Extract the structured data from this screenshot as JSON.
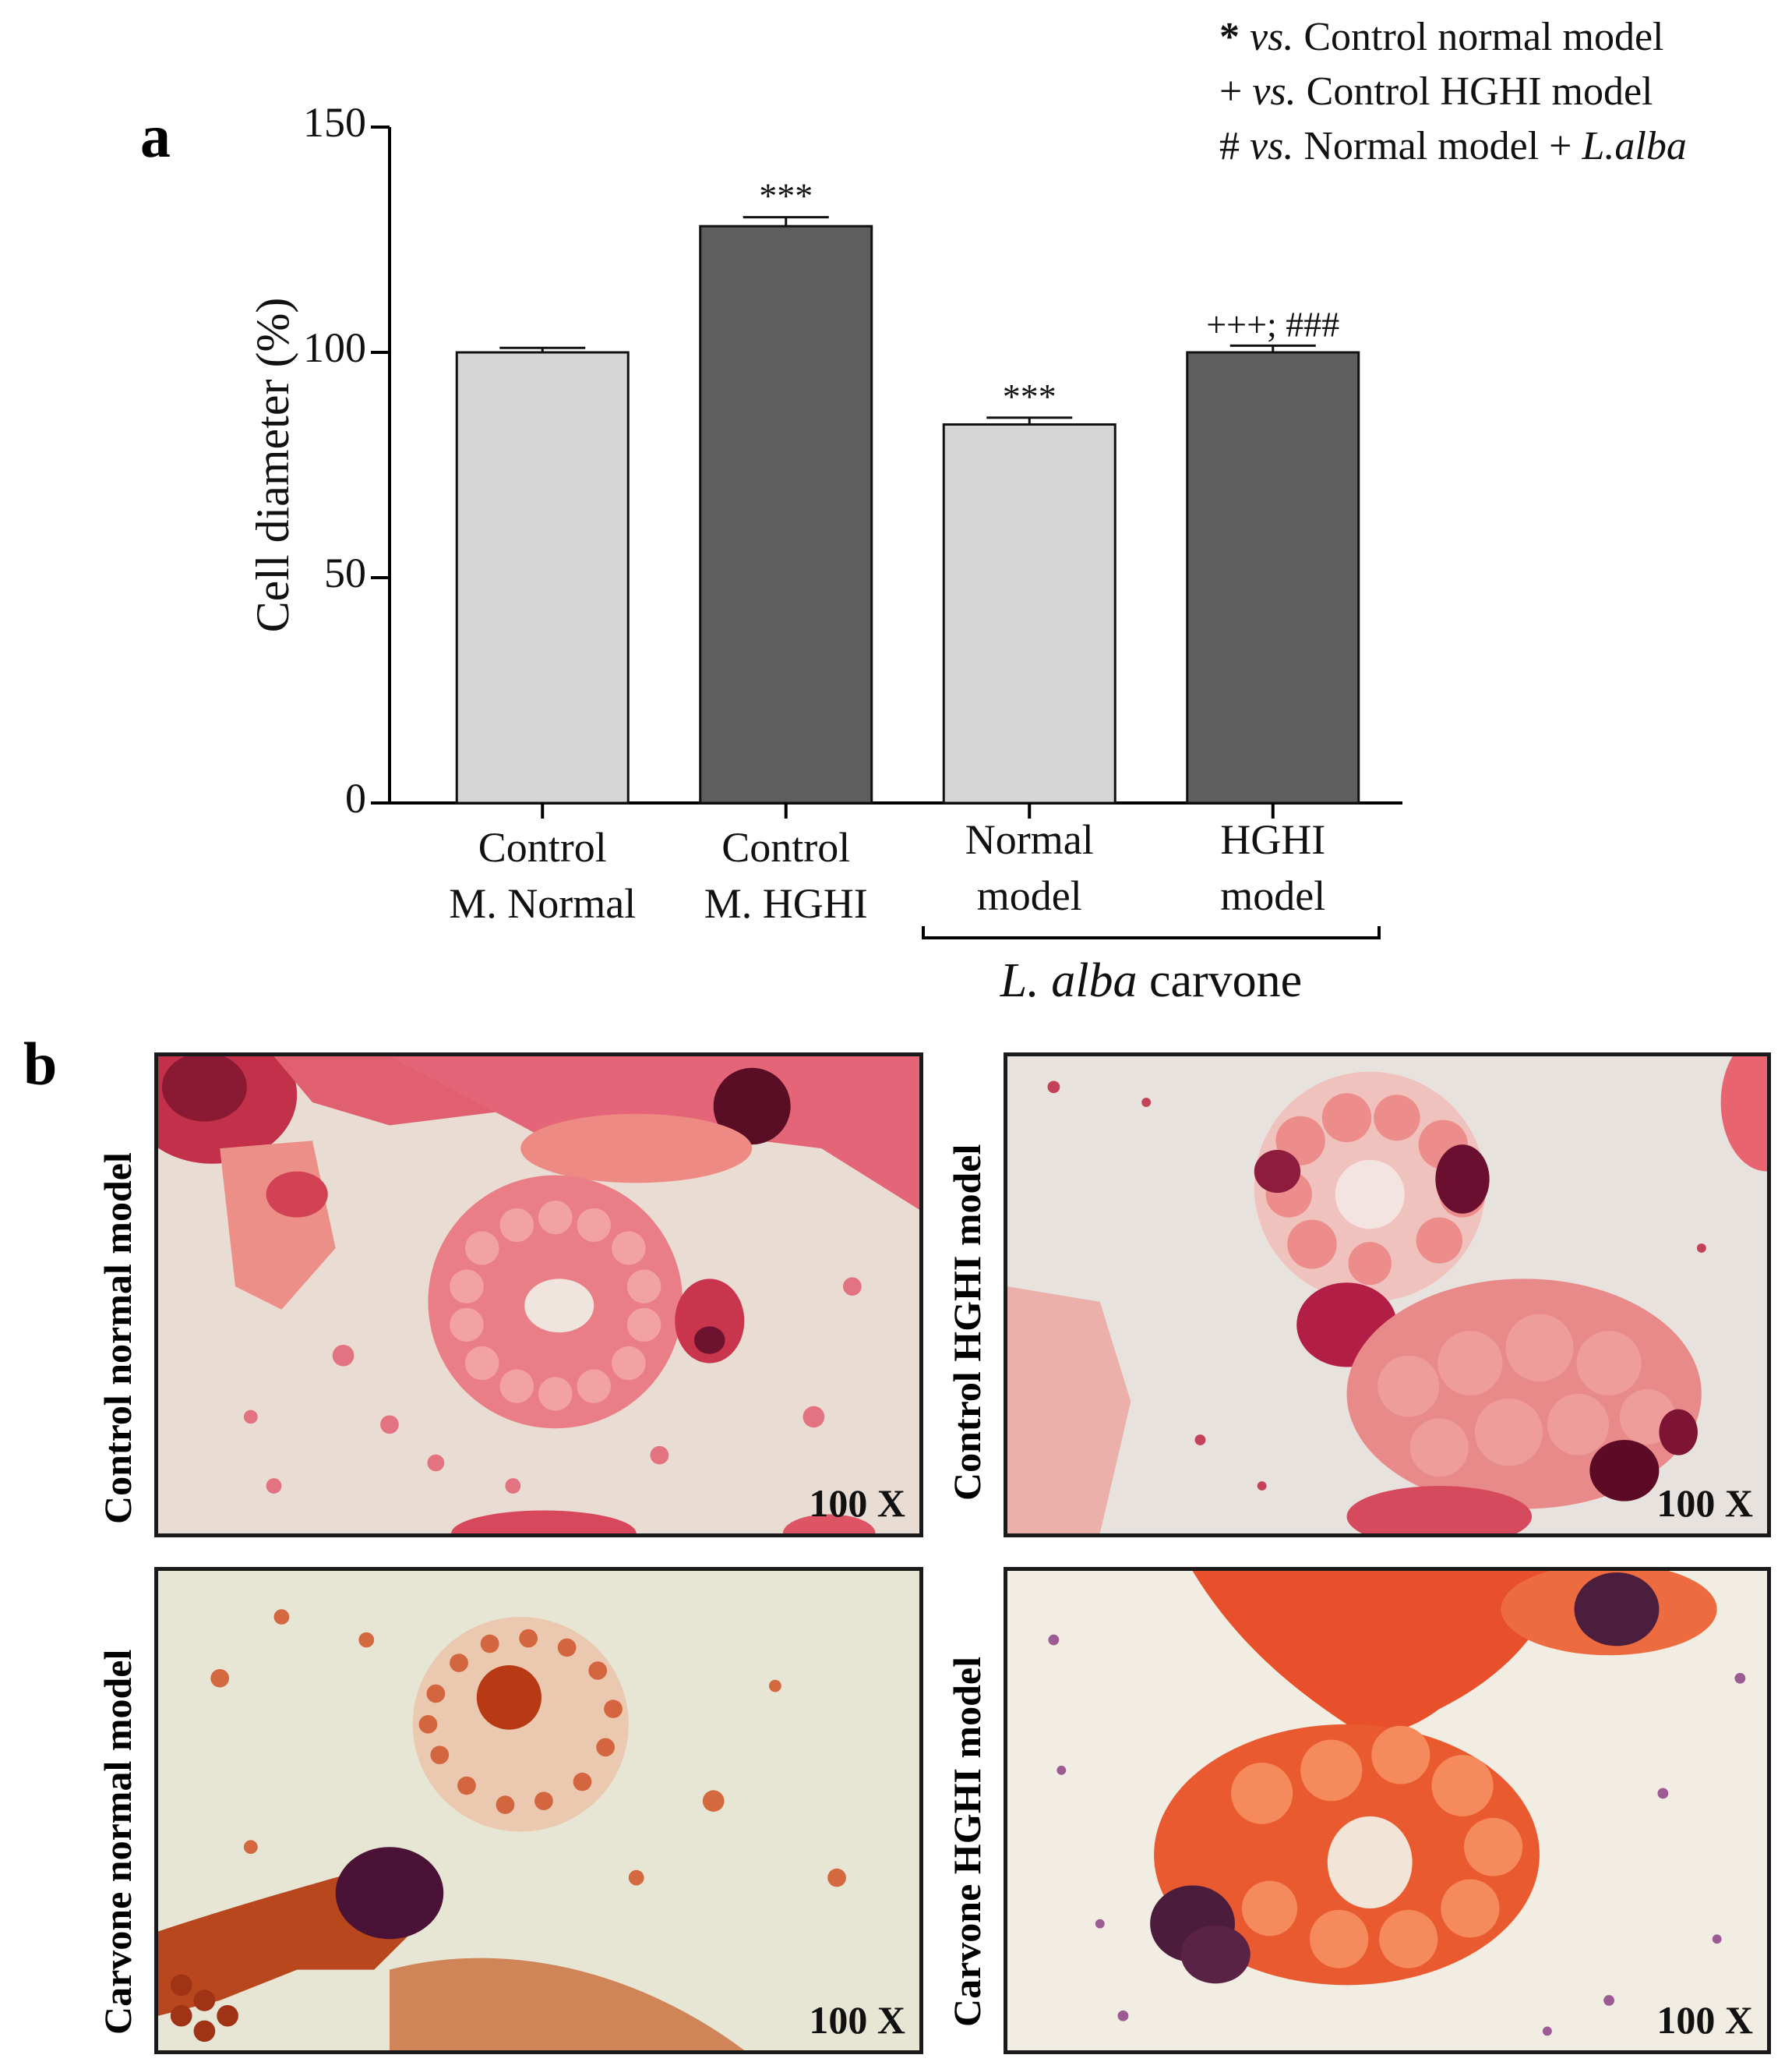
{
  "panels": {
    "a": "a",
    "b": "b"
  },
  "legend": [
    {
      "symbol": "*",
      "vs": "vs.",
      "text": "Control normal model",
      "extra": ""
    },
    {
      "symbol": "+",
      "vs": "vs.",
      "text": "Control HGHI model",
      "extra": ""
    },
    {
      "symbol": "#",
      "vs": "vs.",
      "text": "Normal model +",
      "extra": "L.alba"
    }
  ],
  "chart_data": {
    "type": "bar",
    "ylabel": "Cell diameter (%)",
    "ylim": [
      0,
      150
    ],
    "yticks": [
      0,
      50,
      100,
      150
    ],
    "categories": [
      {
        "line1": "Control",
        "line2": "M. Normal"
      },
      {
        "line1": "Control",
        "line2": "M. HGHI"
      },
      {
        "line1": "Normal",
        "line2": "model"
      },
      {
        "line1": "HGHI",
        "line2": "model"
      }
    ],
    "values": [
      100,
      128,
      84,
      100
    ],
    "errors": [
      1,
      2,
      1.5,
      1.5
    ],
    "bar_colors": [
      "#d6d6d6",
      "#5e5e5e",
      "#d6d6d6",
      "#5e5e5e"
    ],
    "significance": [
      "",
      "***",
      "***",
      "+++; ###"
    ],
    "group_label": {
      "italic": "L. alba",
      "normal": "carvone"
    },
    "grid": false
  },
  "micrographs": [
    {
      "label": "Control normal model",
      "magnification": "100 X"
    },
    {
      "label": "Control HGHI model",
      "magnification": "100 X"
    },
    {
      "label": "Carvone normal model",
      "magnification": "100 X"
    },
    {
      "label": "Carvone HGHI model",
      "magnification": "100 X"
    }
  ]
}
